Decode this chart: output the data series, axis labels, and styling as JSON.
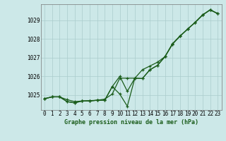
{
  "title": "Graphe pression niveau de la mer (hPa)",
  "bg_color": "#cce8e8",
  "grid_color": "#aacccc",
  "line_color": "#1a5c1a",
  "xlim": [
    -0.5,
    23.5
  ],
  "ylim": [
    1024.2,
    1029.85
  ],
  "yticks": [
    1025,
    1026,
    1027,
    1028,
    1029
  ],
  "xticks": [
    0,
    1,
    2,
    3,
    4,
    5,
    6,
    7,
    8,
    9,
    10,
    11,
    12,
    13,
    14,
    15,
    16,
    17,
    18,
    19,
    20,
    21,
    22,
    23
  ],
  "series1": [
    1024.8,
    1024.9,
    1024.9,
    1024.75,
    1024.65,
    1024.68,
    1024.7,
    1024.72,
    1024.78,
    1025.05,
    1025.9,
    1025.9,
    1025.9,
    1026.35,
    1026.55,
    1026.75,
    1027.05,
    1027.75,
    1028.15,
    1028.52,
    1028.88,
    1029.28,
    1029.55,
    1029.35
  ],
  "series2": [
    1024.8,
    1024.9,
    1024.9,
    1024.65,
    1024.58,
    1024.68,
    1024.68,
    1024.72,
    1024.72,
    1025.45,
    1026.0,
    1025.2,
    1025.9,
    1025.88,
    1026.35,
    1026.58,
    1027.05,
    1027.72,
    1028.15,
    1028.52,
    1028.88,
    1029.28,
    1029.55,
    1029.35
  ],
  "series3": [
    1024.8,
    1024.9,
    1024.9,
    1024.65,
    1024.58,
    1024.68,
    1024.68,
    1024.72,
    1024.72,
    1025.45,
    1025.05,
    1024.4,
    1025.9,
    1025.88,
    1026.35,
    1026.58,
    1027.05,
    1027.72,
    1028.15,
    1028.52,
    1028.88,
    1029.28,
    1029.55,
    1029.35
  ],
  "ylabel_fontsize": 5.5,
  "xlabel_fontsize": 5.5,
  "title_fontsize": 6.0,
  "linewidth": 0.9,
  "markersize": 3.0
}
